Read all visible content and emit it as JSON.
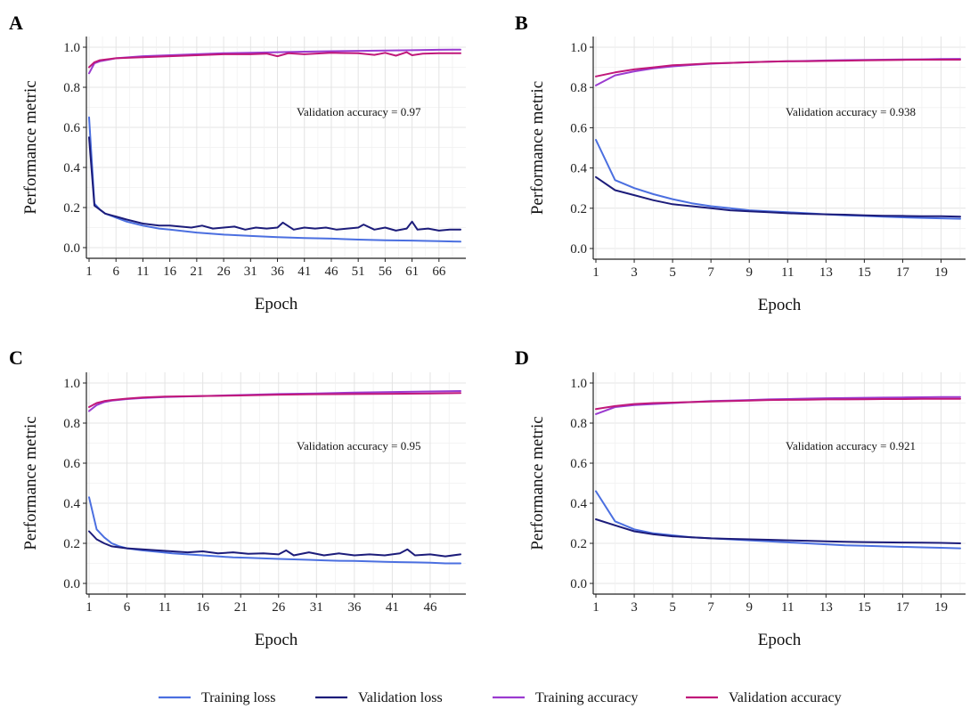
{
  "legend": [
    {
      "label": "Training loss",
      "color": "#4B6FE0"
    },
    {
      "label": "Validation loss",
      "color": "#1C1C7A"
    },
    {
      "label": "Training accuracy",
      "color": "#9B3BD0"
    },
    {
      "label": "Validation accuracy",
      "color": "#C0187A"
    }
  ],
  "chart_data": [
    {
      "panel": "A",
      "type": "line",
      "xlabel": "Epoch",
      "ylabel": "Performance metric",
      "annotation": "Validation accuracy =  0.97",
      "xlim": [
        1,
        70
      ],
      "ylim": [
        0,
        1
      ],
      "xticks": [
        1,
        6,
        11,
        16,
        21,
        26,
        31,
        36,
        41,
        46,
        51,
        56,
        61,
        66
      ],
      "yticks": [
        "0.0",
        "0.2",
        "0.4",
        "0.6",
        "0.8",
        "1.0"
      ],
      "grid": true,
      "series": [
        {
          "name": "Training loss",
          "x": [
            1,
            2,
            3,
            4,
            6,
            8,
            11,
            14,
            16,
            21,
            26,
            31,
            36,
            41,
            46,
            51,
            56,
            61,
            66,
            70
          ],
          "y": [
            0.65,
            0.22,
            0.19,
            0.17,
            0.15,
            0.13,
            0.11,
            0.095,
            0.09,
            0.075,
            0.065,
            0.058,
            0.052,
            0.048,
            0.045,
            0.04,
            0.037,
            0.035,
            0.032,
            0.03
          ]
        },
        {
          "name": "Validation loss",
          "x": [
            1,
            2,
            3,
            4,
            6,
            8,
            11,
            14,
            16,
            18,
            20,
            22,
            24,
            26,
            28,
            30,
            32,
            34,
            36,
            37,
            39,
            41,
            43,
            45,
            47,
            49,
            51,
            52,
            54,
            56,
            58,
            60,
            61,
            62,
            64,
            66,
            68,
            70
          ],
          "y": [
            0.55,
            0.21,
            0.19,
            0.17,
            0.155,
            0.14,
            0.12,
            0.11,
            0.11,
            0.105,
            0.1,
            0.11,
            0.095,
            0.1,
            0.105,
            0.09,
            0.1,
            0.095,
            0.1,
            0.125,
            0.09,
            0.1,
            0.095,
            0.1,
            0.09,
            0.095,
            0.1,
            0.115,
            0.09,
            0.1,
            0.085,
            0.095,
            0.13,
            0.09,
            0.095,
            0.085,
            0.09,
            0.09
          ]
        },
        {
          "name": "Training accuracy",
          "x": [
            1,
            2,
            3,
            6,
            11,
            16,
            21,
            26,
            31,
            36,
            41,
            46,
            51,
            56,
            61,
            66,
            70
          ],
          "y": [
            0.87,
            0.92,
            0.93,
            0.945,
            0.955,
            0.96,
            0.965,
            0.97,
            0.972,
            0.975,
            0.978,
            0.98,
            0.982,
            0.983,
            0.985,
            0.987,
            0.988
          ]
        },
        {
          "name": "Validation accuracy",
          "x": [
            1,
            2,
            3,
            6,
            11,
            16,
            21,
            26,
            31,
            34,
            36,
            38,
            41,
            46,
            51,
            54,
            56,
            58,
            60,
            61,
            63,
            66,
            70
          ],
          "y": [
            0.9,
            0.925,
            0.935,
            0.945,
            0.95,
            0.955,
            0.96,
            0.965,
            0.965,
            0.968,
            0.955,
            0.97,
            0.965,
            0.972,
            0.97,
            0.962,
            0.972,
            0.958,
            0.975,
            0.96,
            0.968,
            0.97,
            0.97
          ]
        }
      ]
    },
    {
      "panel": "B",
      "type": "line",
      "xlabel": "Epoch",
      "ylabel": "Performance metric",
      "annotation": "Validation accuracy =  0.938",
      "xlim": [
        1,
        20
      ],
      "ylim": [
        0,
        1
      ],
      "xticks": [
        1,
        3,
        5,
        7,
        9,
        11,
        13,
        15,
        17,
        19
      ],
      "yticks": [
        "0.0",
        "0.2",
        "0.4",
        "0.6",
        "0.8",
        "1.0"
      ],
      "grid": true,
      "series": [
        {
          "name": "Training loss",
          "x": [
            1,
            2,
            3,
            4,
            5,
            6,
            7,
            8,
            9,
            10,
            11,
            12,
            13,
            14,
            15,
            16,
            17,
            18,
            19,
            20
          ],
          "y": [
            0.54,
            0.34,
            0.3,
            0.27,
            0.245,
            0.225,
            0.21,
            0.2,
            0.19,
            0.185,
            0.18,
            0.175,
            0.17,
            0.165,
            0.162,
            0.158,
            0.155,
            0.152,
            0.15,
            0.148
          ]
        },
        {
          "name": "Validation loss",
          "x": [
            1,
            2,
            3,
            4,
            5,
            6,
            7,
            8,
            9,
            10,
            11,
            12,
            13,
            14,
            15,
            16,
            17,
            18,
            19,
            20
          ],
          "y": [
            0.355,
            0.29,
            0.265,
            0.24,
            0.22,
            0.21,
            0.2,
            0.19,
            0.185,
            0.18,
            0.175,
            0.172,
            0.17,
            0.168,
            0.165,
            0.163,
            0.162,
            0.16,
            0.16,
            0.158
          ]
        },
        {
          "name": "Training accuracy",
          "x": [
            1,
            2,
            3,
            4,
            5,
            6,
            7,
            8,
            9,
            10,
            11,
            12,
            13,
            14,
            15,
            16,
            17,
            18,
            19,
            20
          ],
          "y": [
            0.81,
            0.86,
            0.88,
            0.895,
            0.905,
            0.912,
            0.918,
            0.922,
            0.925,
            0.928,
            0.93,
            0.932,
            0.934,
            0.936,
            0.937,
            0.938,
            0.939,
            0.94,
            0.941,
            0.942
          ]
        },
        {
          "name": "Validation accuracy",
          "x": [
            1,
            2,
            3,
            4,
            5,
            6,
            7,
            8,
            9,
            10,
            11,
            12,
            13,
            14,
            15,
            16,
            17,
            18,
            19,
            20
          ],
          "y": [
            0.855,
            0.875,
            0.89,
            0.9,
            0.91,
            0.915,
            0.92,
            0.922,
            0.925,
            0.928,
            0.93,
            0.93,
            0.932,
            0.933,
            0.935,
            0.936,
            0.937,
            0.938,
            0.938,
            0.938
          ]
        }
      ]
    },
    {
      "panel": "C",
      "type": "line",
      "xlabel": "Epoch",
      "ylabel": "Performance metric",
      "annotation": "Validation accuracy =  0.95",
      "xlim": [
        1,
        50
      ],
      "ylim": [
        0,
        1
      ],
      "xticks": [
        1,
        6,
        11,
        16,
        21,
        26,
        31,
        36,
        41,
        46
      ],
      "yticks": [
        "0.0",
        "0.2",
        "0.4",
        "0.6",
        "0.8",
        "1.0"
      ],
      "grid": true,
      "series": [
        {
          "name": "Training loss",
          "x": [
            1,
            2,
            3,
            4,
            5,
            6,
            8,
            10,
            12,
            14,
            16,
            18,
            20,
            22,
            24,
            26,
            28,
            30,
            32,
            34,
            36,
            38,
            40,
            42,
            44,
            46,
            48,
            50
          ],
          "y": [
            0.43,
            0.27,
            0.23,
            0.2,
            0.185,
            0.175,
            0.165,
            0.158,
            0.15,
            0.145,
            0.14,
            0.135,
            0.13,
            0.128,
            0.125,
            0.122,
            0.12,
            0.118,
            0.115,
            0.113,
            0.112,
            0.11,
            0.108,
            0.106,
            0.105,
            0.103,
            0.1,
            0.1
          ]
        },
        {
          "name": "Validation loss",
          "x": [
            1,
            2,
            3,
            4,
            5,
            6,
            8,
            10,
            12,
            14,
            16,
            18,
            20,
            22,
            24,
            26,
            27,
            28,
            30,
            32,
            34,
            36,
            38,
            40,
            42,
            43,
            44,
            46,
            48,
            50
          ],
          "y": [
            0.26,
            0.22,
            0.2,
            0.185,
            0.18,
            0.175,
            0.17,
            0.165,
            0.16,
            0.155,
            0.16,
            0.15,
            0.155,
            0.148,
            0.15,
            0.145,
            0.165,
            0.14,
            0.155,
            0.14,
            0.15,
            0.14,
            0.145,
            0.14,
            0.15,
            0.17,
            0.14,
            0.145,
            0.135,
            0.145
          ]
        },
        {
          "name": "Training accuracy",
          "x": [
            1,
            2,
            3,
            4,
            6,
            8,
            11,
            16,
            21,
            26,
            31,
            36,
            41,
            46,
            50
          ],
          "y": [
            0.86,
            0.89,
            0.905,
            0.912,
            0.92,
            0.925,
            0.93,
            0.935,
            0.94,
            0.945,
            0.948,
            0.952,
            0.955,
            0.958,
            0.96
          ]
        },
        {
          "name": "Validation accuracy",
          "x": [
            1,
            2,
            3,
            4,
            6,
            8,
            11,
            16,
            21,
            26,
            31,
            36,
            41,
            46,
            50
          ],
          "y": [
            0.88,
            0.9,
            0.91,
            0.915,
            0.922,
            0.928,
            0.932,
            0.935,
            0.938,
            0.942,
            0.944,
            0.945,
            0.946,
            0.948,
            0.95
          ]
        }
      ]
    },
    {
      "panel": "D",
      "type": "line",
      "xlabel": "Epoch",
      "ylabel": "Performance metric",
      "annotation": "Validation accuracy =  0.921",
      "xlim": [
        1,
        20
      ],
      "ylim": [
        0,
        1
      ],
      "xticks": [
        1,
        3,
        5,
        7,
        9,
        11,
        13,
        15,
        17,
        19
      ],
      "yticks": [
        "0.0",
        "0.2",
        "0.4",
        "0.6",
        "0.8",
        "1.0"
      ],
      "grid": true,
      "series": [
        {
          "name": "Training loss",
          "x": [
            1,
            2,
            3,
            4,
            5,
            6,
            7,
            8,
            9,
            10,
            11,
            12,
            13,
            14,
            15,
            16,
            17,
            18,
            19,
            20
          ],
          "y": [
            0.46,
            0.31,
            0.27,
            0.25,
            0.24,
            0.23,
            0.225,
            0.22,
            0.215,
            0.21,
            0.205,
            0.2,
            0.195,
            0.19,
            0.188,
            0.185,
            0.182,
            0.18,
            0.178,
            0.175
          ]
        },
        {
          "name": "Validation loss",
          "x": [
            1,
            2,
            3,
            4,
            5,
            6,
            7,
            8,
            9,
            10,
            11,
            12,
            13,
            14,
            15,
            16,
            17,
            18,
            19,
            20
          ],
          "y": [
            0.32,
            0.29,
            0.26,
            0.245,
            0.235,
            0.23,
            0.225,
            0.222,
            0.22,
            0.218,
            0.215,
            0.213,
            0.21,
            0.208,
            0.206,
            0.205,
            0.204,
            0.203,
            0.202,
            0.2
          ]
        },
        {
          "name": "Training accuracy",
          "x": [
            1,
            2,
            3,
            4,
            5,
            6,
            7,
            8,
            9,
            10,
            11,
            12,
            13,
            14,
            15,
            16,
            17,
            18,
            19,
            20
          ],
          "y": [
            0.845,
            0.88,
            0.89,
            0.895,
            0.9,
            0.905,
            0.91,
            0.912,
            0.915,
            0.918,
            0.92,
            0.922,
            0.924,
            0.925,
            0.926,
            0.927,
            0.928,
            0.929,
            0.93,
            0.93
          ]
        },
        {
          "name": "Validation accuracy",
          "x": [
            1,
            2,
            3,
            4,
            5,
            6,
            7,
            8,
            9,
            10,
            11,
            12,
            13,
            14,
            15,
            16,
            17,
            18,
            19,
            20
          ],
          "y": [
            0.87,
            0.885,
            0.895,
            0.9,
            0.902,
            0.905,
            0.908,
            0.91,
            0.912,
            0.915,
            0.916,
            0.917,
            0.918,
            0.918,
            0.919,
            0.92,
            0.92,
            0.921,
            0.921,
            0.921
          ]
        }
      ]
    }
  ]
}
